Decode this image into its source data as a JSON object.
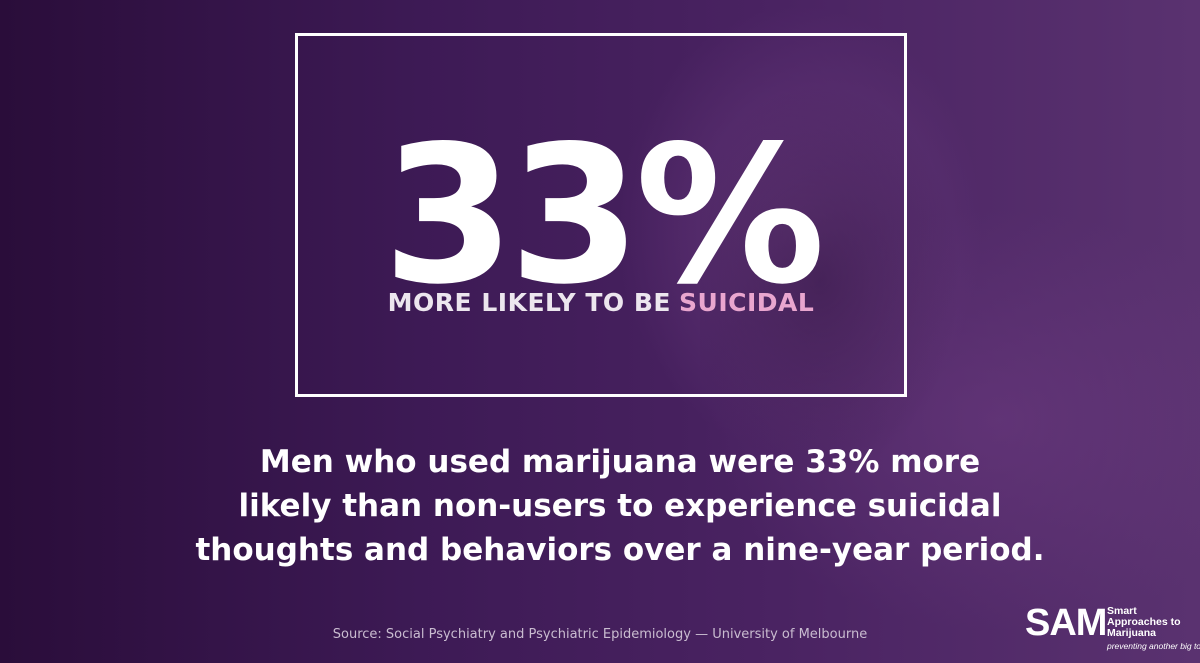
{
  "headline": {
    "stat": "33%",
    "subtitle": "MORE LIKELY TO BE",
    "subtitle_highlight": "SUICIDAL"
  },
  "body": {
    "lines": [
      "Men who used marijuana were 33% more",
      "likely than non-users to experience suicidal",
      "thoughts and behaviors over a nine-year period."
    ]
  },
  "source": "Source: Social Psychiatry and Psychiatric Epidemiology — University of Melbourne",
  "logo": {
    "mark": "SAM",
    "name_lines": [
      "Smart",
      "Approaches to",
      "Marijuana"
    ],
    "tagline": "preventing another big tobacco"
  }
}
